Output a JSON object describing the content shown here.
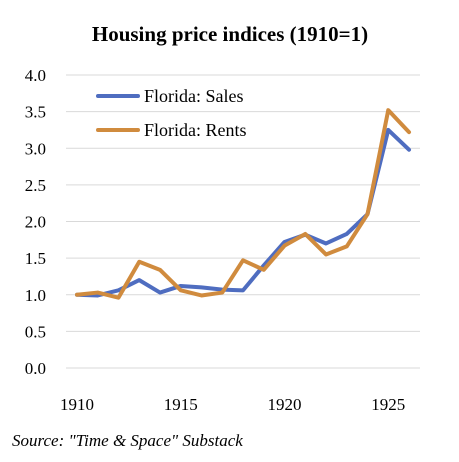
{
  "chart_data": {
    "type": "line",
    "title": "Housing price indices (1910=1)",
    "x": [
      1910,
      1911,
      1912,
      1913,
      1914,
      1915,
      1916,
      1917,
      1918,
      1919,
      1920,
      1921,
      1922,
      1923,
      1924,
      1925,
      1926
    ],
    "series": [
      {
        "name": "Florida: Sales",
        "color": "#4F6DC0",
        "values": [
          1.0,
          0.99,
          1.06,
          1.2,
          1.03,
          1.12,
          1.1,
          1.07,
          1.06,
          1.4,
          1.72,
          1.82,
          1.7,
          1.83,
          2.1,
          3.25,
          2.98
        ]
      },
      {
        "name": "Florida: Rents",
        "color": "#D08B3E",
        "values": [
          1.0,
          1.03,
          0.96,
          1.45,
          1.34,
          1.06,
          0.99,
          1.03,
          1.47,
          1.34,
          1.67,
          1.83,
          1.55,
          1.66,
          2.1,
          3.52,
          3.22
        ]
      }
    ],
    "xlim": [
      1910,
      1926
    ],
    "ylim": [
      0,
      4.0
    ],
    "yticks": [
      "0.0",
      "0.5",
      "1.0",
      "1.5",
      "2.0",
      "2.5",
      "3.0",
      "3.5",
      "4.0"
    ],
    "xticks": [
      "1910",
      "1915",
      "1920",
      "1925"
    ],
    "grid": true,
    "legend_position": "top-left"
  },
  "source": "Source: \"Time & Space\" Substack"
}
